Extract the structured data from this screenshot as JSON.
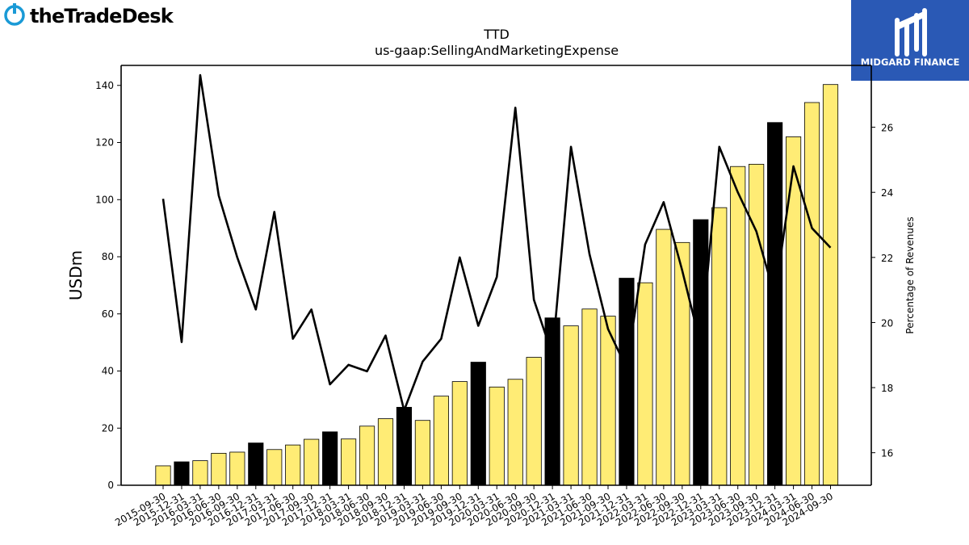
{
  "brand": {
    "left_logo_text": "theTradeDesk",
    "right_logo_text": "MIDGARD FINANCE",
    "right_logo_color": "#2a59b5"
  },
  "colors": {
    "bar_default": "#ffec75",
    "bar_highlight": "#000000",
    "bar_edge": "#000000",
    "line": "#000000"
  },
  "chart_data": {
    "type": "bar",
    "title": "TTD",
    "subtitle": "us-gaap:SellingAndMarketingExpense",
    "ylabel": "USDm",
    "y2label": "Percentage of Revenues",
    "ylim": [
      0,
      147
    ],
    "y2lim": [
      15,
      27.9
    ],
    "yticks": [
      0,
      20,
      40,
      60,
      80,
      100,
      120,
      140
    ],
    "y2ticks": [
      16,
      18,
      20,
      22,
      24,
      26
    ],
    "categories": [
      "2015-09-30",
      "2015-12-31",
      "2016-03-31",
      "2016-06-30",
      "2016-09-30",
      "2016-12-31",
      "2017-03-31",
      "2017-06-30",
      "2017-09-30",
      "2017-12-31",
      "2018-03-31",
      "2018-06-30",
      "2018-09-30",
      "2018-12-31",
      "2019-03-31",
      "2019-06-30",
      "2019-09-30",
      "2019-12-31",
      "2020-03-31",
      "2020-06-30",
      "2020-09-30",
      "2020-12-31",
      "2021-03-31",
      "2021-06-30",
      "2021-09-30",
      "2021-12-31",
      "2022-03-31",
      "2022-06-30",
      "2022-09-30",
      "2022-12-31",
      "2023-03-31",
      "2023-06-30",
      "2023-09-30",
      "2023-12-31",
      "2024-03-31",
      "2024-06-30",
      "2024-09-30"
    ],
    "series": [
      {
        "type": "bar",
        "axis": "left",
        "values": [
          6.8,
          8.2,
          8.6,
          11.2,
          11.6,
          14.8,
          12.5,
          14.1,
          16.1,
          18.7,
          16.2,
          20.7,
          23.3,
          27.3,
          22.7,
          31.2,
          36.3,
          43.1,
          34.4,
          37.1,
          44.8,
          58.6,
          55.8,
          61.7,
          59.2,
          72.5,
          70.9,
          89.6,
          85.0,
          93.0,
          97.2,
          111.6,
          112.4,
          127.0,
          122.0,
          134.0,
          140.3
        ],
        "highlight": [
          false,
          true,
          false,
          false,
          false,
          true,
          false,
          false,
          false,
          true,
          false,
          false,
          false,
          true,
          false,
          false,
          false,
          true,
          false,
          false,
          false,
          true,
          false,
          false,
          false,
          true,
          false,
          false,
          false,
          true,
          false,
          false,
          false,
          true,
          false,
          false,
          false
        ]
      },
      {
        "type": "line",
        "axis": "right",
        "values": [
          23.8,
          19.4,
          27.6,
          23.9,
          22.0,
          20.4,
          23.4,
          19.5,
          20.4,
          18.1,
          18.7,
          18.5,
          19.6,
          17.3,
          18.8,
          19.5,
          22.0,
          19.9,
          21.4,
          26.6,
          20.7,
          19.0,
          25.4,
          22.1,
          19.8,
          18.6,
          22.4,
          23.7,
          21.6,
          19.3,
          25.4,
          24.0,
          22.8,
          20.8,
          24.8,
          22.9,
          22.3
        ]
      }
    ],
    "grid": false,
    "legend": "none"
  }
}
